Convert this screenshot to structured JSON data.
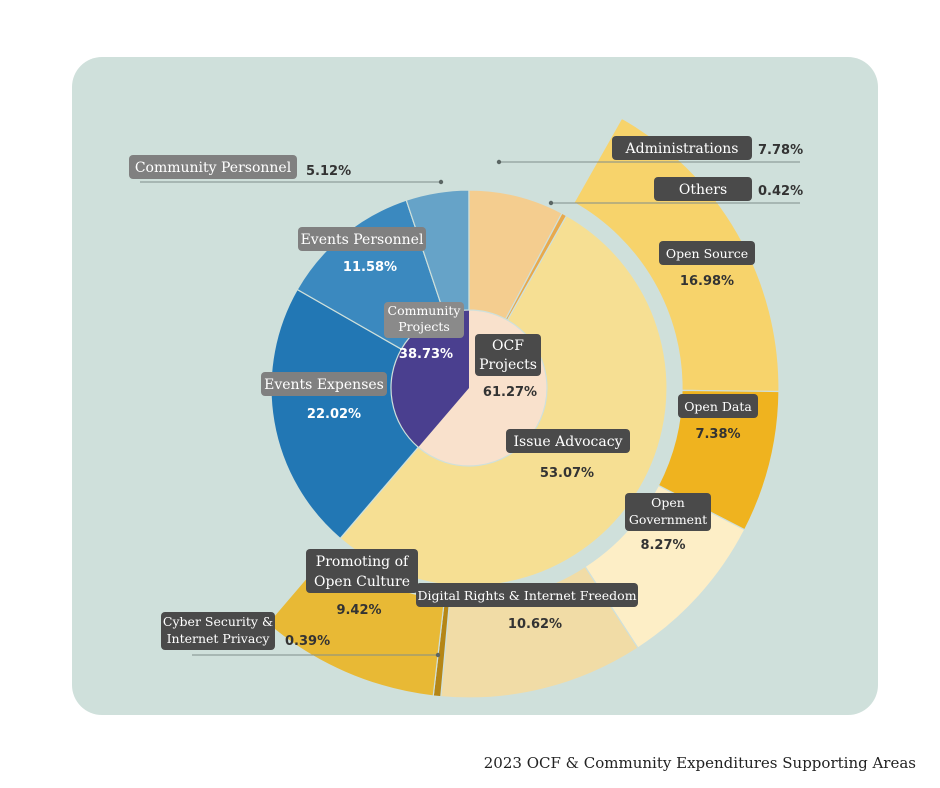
{
  "caption": "2023 OCF & Community Expenditures Supporting Areas",
  "chart_data": {
    "type": "pie",
    "title": "2023 OCF & Community Expenditures Supporting Areas",
    "inner": [
      {
        "name": "OCF Projects",
        "lines": [
          "OCF",
          "Projects"
        ],
        "value": 61.27,
        "label": "61.27%",
        "color": "#f9e1cc"
      },
      {
        "name": "Community Projects",
        "lines": [
          "Community",
          "Projects"
        ],
        "value": 38.73,
        "label": "38.73%",
        "color": "#4a3f8f"
      }
    ],
    "middle": [
      {
        "name": "Administrations",
        "parent": "OCF Projects",
        "value": 7.78,
        "label": "7.78%",
        "color": "#f4cd8f"
      },
      {
        "name": "Others",
        "parent": "OCF Projects",
        "value": 0.42,
        "label": "0.42%",
        "color": "#e8a94c"
      },
      {
        "name": "Issue Advocacy",
        "parent": "OCF Projects",
        "value": 53.07,
        "label": "53.07%",
        "color": "#f6df93"
      },
      {
        "name": "Events Expenses",
        "parent": "Community Projects",
        "value": 22.02,
        "label": "22.02%",
        "color": "#2277b4"
      },
      {
        "name": "Events Personnel",
        "parent": "Community Projects",
        "value": 11.58,
        "label": "11.58%",
        "color": "#3b89bf"
      },
      {
        "name": "Community Personnel",
        "parent": "Community Projects",
        "value": 5.12,
        "label": "5.12%",
        "color": "#66a3c8"
      }
    ],
    "outer": [
      {
        "name": "Open Source",
        "lines": [
          "Open Source"
        ],
        "value": 16.98,
        "label": "16.98%",
        "color": "#f7d36b"
      },
      {
        "name": "Open Data",
        "lines": [
          "Open Data"
        ],
        "value": 7.38,
        "label": "7.38%",
        "color": "#efb31f"
      },
      {
        "name": "Open Government",
        "lines": [
          "Open",
          "Government"
        ],
        "value": 8.27,
        "label": "8.27%",
        "color": "#fdeec6"
      },
      {
        "name": "Digital Rights & Internet Freedom",
        "lines": [
          "Digital Rights & Internet Freedom"
        ],
        "value": 10.62,
        "label": "10.62%",
        "color": "#f1dca6"
      },
      {
        "name": "Cyber Security & Internet Privacy",
        "lines": [
          "Cyber Security &",
          "Internet Privacy"
        ],
        "value": 0.39,
        "label": "0.39%",
        "color": "#b58616"
      },
      {
        "name": "Promoting of Open Culture",
        "lines": [
          "Promoting of",
          "Open Culture"
        ],
        "value": 9.42,
        "label": "9.42%",
        "color": "#e8b935"
      }
    ],
    "legend": "none"
  }
}
